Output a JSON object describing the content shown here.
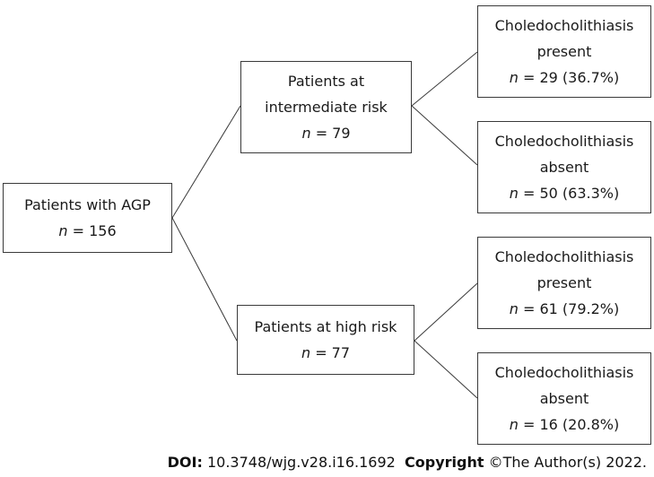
{
  "root": {
    "label": "Patients with AGP",
    "n_symbol": "n",
    "n_value": "= 156"
  },
  "intermediate": {
    "line1": "Patients at",
    "line2": "intermediate risk",
    "n_symbol": "n",
    "n_value": "= 79"
  },
  "high": {
    "label": "Patients at high risk",
    "n_symbol": "n",
    "n_value": "= 77"
  },
  "outcomes": [
    {
      "line1": "Choledocholithiasis",
      "line2": "present",
      "n_symbol": "n",
      "n_value": "= 29 (36.7%)"
    },
    {
      "line1": "Choledocholithiasis",
      "line2": "absent",
      "n_symbol": "n",
      "n_value": "= 50 (63.3%)"
    },
    {
      "line1": "Choledocholithiasis",
      "line2": "present",
      "n_symbol": "n",
      "n_value": "= 61 (79.2%)"
    },
    {
      "line1": "Choledocholithiasis",
      "line2": "absent",
      "n_symbol": "n",
      "n_value": "= 16 (20.8%)"
    }
  ],
  "footer": {
    "doi_label": "DOI:",
    "doi_value": "10.3748/wjg.v28.i16.1692",
    "copyright_label": "Copyright",
    "copyright_value": "©The Author(s) 2022."
  }
}
